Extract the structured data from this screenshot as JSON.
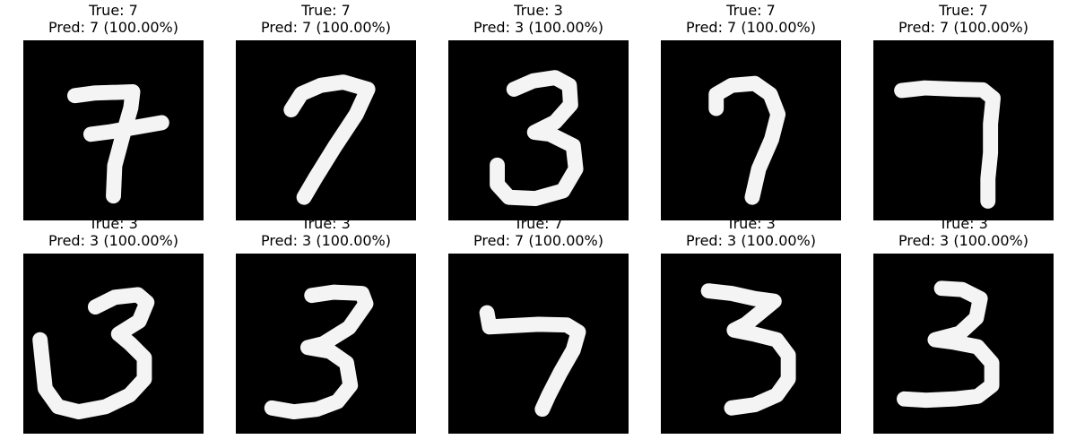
{
  "panels": [
    {
      "true_label": "True: 7",
      "pred_label": "Pred: 7 (100.00%)",
      "digit": "7"
    },
    {
      "true_label": "True: 7",
      "pred_label": "Pred: 7 (100.00%)",
      "digit": "7"
    },
    {
      "true_label": "True: 3",
      "pred_label": "Pred: 3 (100.00%)",
      "digit": "3"
    },
    {
      "true_label": "True: 7",
      "pred_label": "Pred: 7 (100.00%)",
      "digit": "7"
    },
    {
      "true_label": "True: 7",
      "pred_label": "Pred: 7 (100.00%)",
      "digit": "7"
    },
    {
      "true_label": "True: 3",
      "pred_label": "Pred: 3 (100.00%)",
      "digit": "3"
    },
    {
      "true_label": "True: 3",
      "pred_label": "Pred: 3 (100.00%)",
      "digit": "3"
    },
    {
      "true_label": "True: 7",
      "pred_label": "Pred: 7 (100.00%)",
      "digit": "7"
    },
    {
      "true_label": "True: 3",
      "pred_label": "Pred: 3 (100.00%)",
      "digit": "3"
    },
    {
      "true_label": "True: 3",
      "pred_label": "Pred: 3 (100.00%)",
      "digit": "3"
    }
  ],
  "colors": {
    "background": "#ffffff",
    "image_background": "#000000",
    "stroke": "#f4f4f4",
    "text": "#000000"
  }
}
